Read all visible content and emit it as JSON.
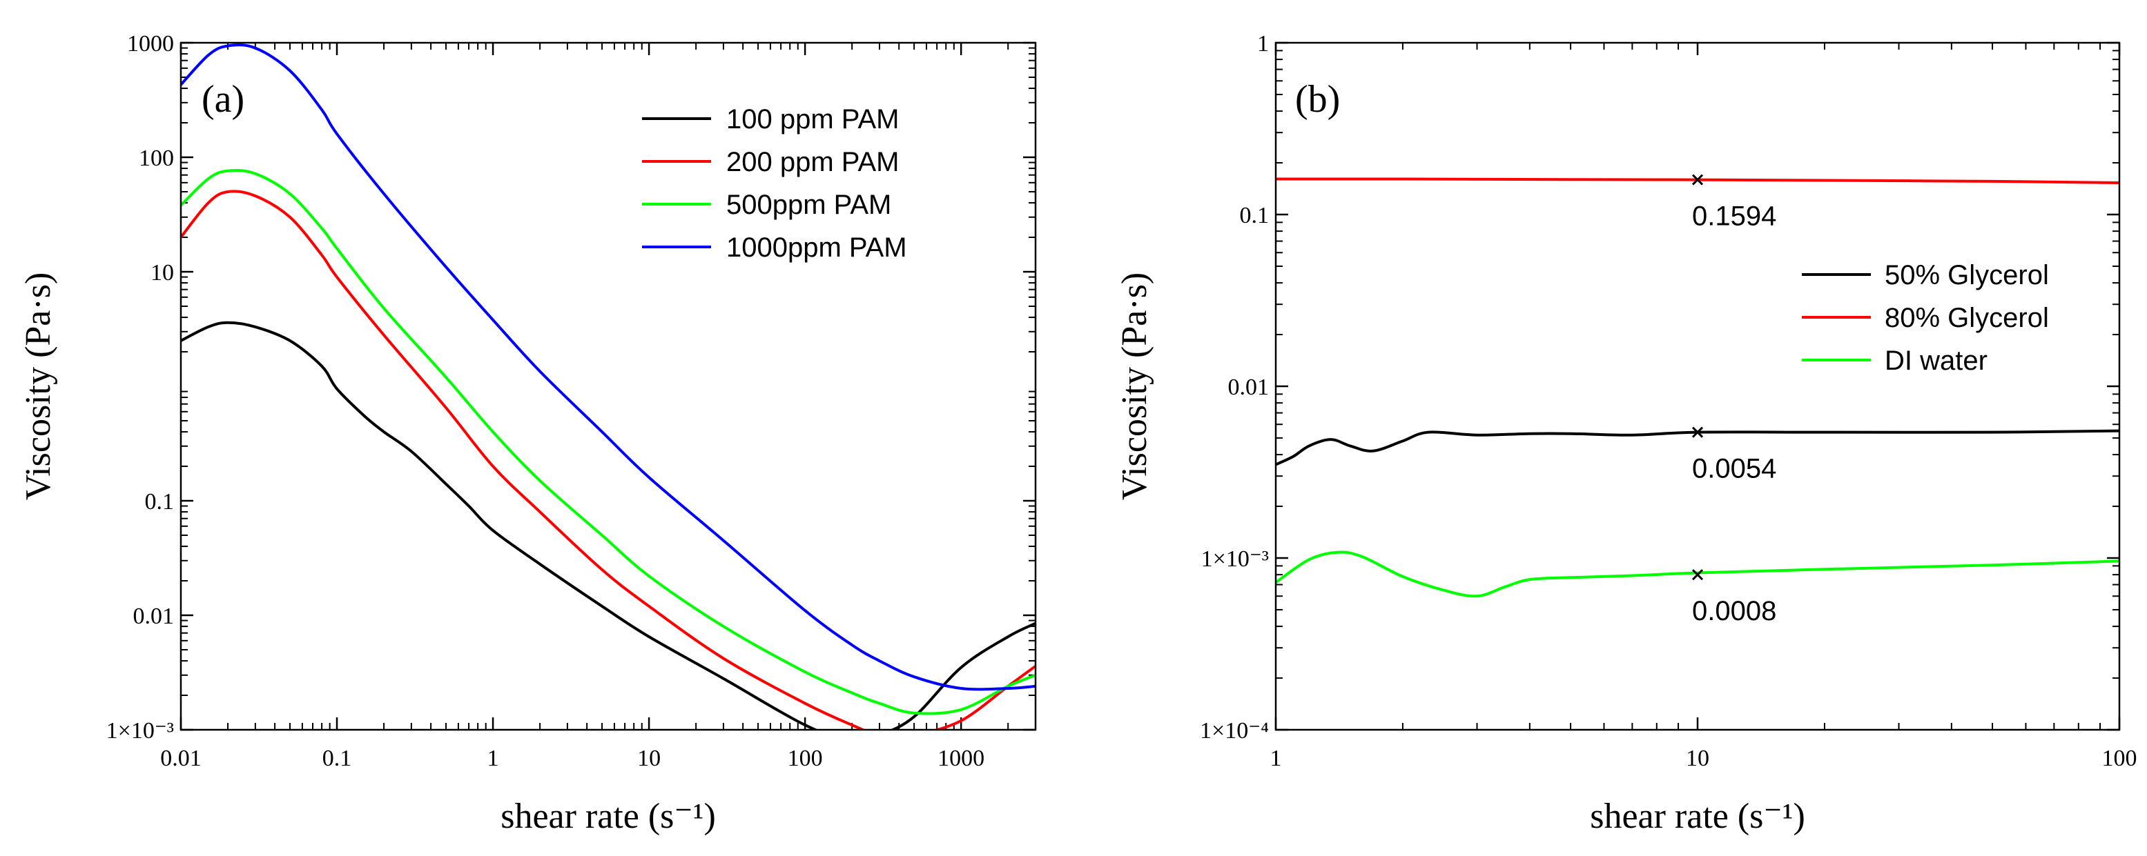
{
  "chart_data": [
    {
      "type": "line",
      "panel_label": "(a)",
      "xlabel": "shear rate (s⁻¹)",
      "ylabel": "Viscosity (Pa·s)",
      "xscale": "log",
      "yscale": "log",
      "xlim": [
        0.01,
        3000
      ],
      "ylim": [
        0.001,
        1000
      ],
      "x_ticks": [
        {
          "value": 0.01,
          "label": "0.01"
        },
        {
          "value": 0.1,
          "label": "0.1"
        },
        {
          "value": 1,
          "label": "1"
        },
        {
          "value": 10,
          "label": "10"
        },
        {
          "value": 100,
          "label": "100"
        },
        {
          "value": 1000,
          "label": "1000"
        }
      ],
      "y_ticks": [
        {
          "value": 0.001,
          "label": "1×10⁻³"
        },
        {
          "value": 0.01,
          "label": "0.01"
        },
        {
          "value": 0.1,
          "label": "0.1"
        },
        {
          "value": 10,
          "label": "10"
        },
        {
          "value": 100,
          "label": "100"
        },
        {
          "value": 1000,
          "label": "1000"
        }
      ],
      "legend_position": "top-right",
      "series": [
        {
          "name": "100 ppm PAM",
          "color": "#000000",
          "x": [
            0.01,
            0.015,
            0.02,
            0.03,
            0.05,
            0.08,
            0.1,
            0.15,
            0.2,
            0.3,
            0.5,
            0.7,
            1,
            2,
            5,
            10,
            30,
            100,
            200,
            300,
            500,
            1000,
            2000,
            3000
          ],
          "y": [
            2.5,
            3.3,
            3.6,
            3.3,
            2.5,
            1.5,
            0.95,
            0.55,
            0.4,
            0.27,
            0.14,
            0.09,
            0.055,
            0.028,
            0.012,
            0.0065,
            0.0028,
            0.0011,
            0.0008,
            0.0009,
            0.0013,
            0.0035,
            0.0065,
            0.0085
          ]
        },
        {
          "name": "200 ppm PAM",
          "color": "#ff0000",
          "x": [
            0.01,
            0.015,
            0.02,
            0.03,
            0.05,
            0.08,
            0.1,
            0.2,
            0.5,
            1,
            2,
            5,
            10,
            30,
            100,
            200,
            300,
            500,
            1000,
            2000,
            3000
          ],
          "y": [
            20,
            40,
            50,
            46,
            30,
            14,
            9,
            2.8,
            0.65,
            0.2,
            0.08,
            0.025,
            0.012,
            0.0042,
            0.0017,
            0.0011,
            0.0009,
            0.0009,
            0.0012,
            0.0024,
            0.0036
          ]
        },
        {
          "name": "500ppm PAM",
          "color": "#00ff00",
          "x": [
            0.01,
            0.015,
            0.02,
            0.03,
            0.05,
            0.08,
            0.1,
            0.2,
            0.5,
            1,
            2,
            5,
            10,
            30,
            100,
            200,
            300,
            500,
            1000,
            2000,
            3000
          ],
          "y": [
            38,
            65,
            76,
            72,
            48,
            24,
            16,
            4.8,
            1.2,
            0.4,
            0.15,
            0.05,
            0.022,
            0.008,
            0.0032,
            0.0021,
            0.0017,
            0.0014,
            0.0015,
            0.0024,
            0.003
          ]
        },
        {
          "name": "1000ppm PAM",
          "color": "#0000ff",
          "x": [
            0.01,
            0.015,
            0.02,
            0.03,
            0.05,
            0.08,
            0.1,
            0.2,
            0.5,
            1,
            2,
            5,
            10,
            30,
            100,
            200,
            300,
            500,
            1000,
            2000,
            3000
          ],
          "y": [
            430,
            780,
            940,
            900,
            570,
            260,
            160,
            48,
            11,
            3.8,
            1.35,
            0.4,
            0.16,
            0.045,
            0.011,
            0.0055,
            0.004,
            0.0029,
            0.0023,
            0.0023,
            0.0024
          ]
        }
      ]
    },
    {
      "type": "line",
      "panel_label": "(b)",
      "xlabel": "shear rate (s⁻¹)",
      "ylabel": "Viscosity (Pa·s)",
      "xscale": "log",
      "yscale": "log",
      "xlim": [
        1,
        100
      ],
      "ylim": [
        0.0001,
        1
      ],
      "x_ticks": [
        {
          "value": 1,
          "label": "1"
        },
        {
          "value": 10,
          "label": "10"
        },
        {
          "value": 100,
          "label": "100"
        }
      ],
      "y_ticks": [
        {
          "value": 0.0001,
          "label": "1×10⁻⁴"
        },
        {
          "value": 0.001,
          "label": "1×10⁻³"
        },
        {
          "value": 0.01,
          "label": "0.01"
        },
        {
          "value": 0.1,
          "label": "0.1"
        },
        {
          "value": 1,
          "label": "1"
        }
      ],
      "legend_position": "center-right",
      "series": [
        {
          "name": "50% Glycerol",
          "color": "#000000",
          "x": [
            1,
            1.1,
            1.2,
            1.35,
            1.5,
            1.7,
            2.0,
            2.3,
            3,
            4,
            5,
            7,
            10,
            20,
            50,
            100
          ],
          "y": [
            0.0035,
            0.0039,
            0.0045,
            0.0049,
            0.0045,
            0.0042,
            0.0048,
            0.0054,
            0.0052,
            0.0053,
            0.0053,
            0.0052,
            0.0054,
            0.0054,
            0.0054,
            0.0055
          ]
        },
        {
          "name": "80% Glycerol",
          "color": "#ff0000",
          "x": [
            1,
            2,
            5,
            10,
            20,
            50,
            100
          ],
          "y": [
            0.161,
            0.161,
            0.16,
            0.1594,
            0.158,
            0.156,
            0.153
          ]
        },
        {
          "name": "DI water",
          "color": "#00ff00",
          "x": [
            1,
            1.2,
            1.4,
            1.6,
            2.0,
            2.5,
            3.0,
            3.5,
            4.0,
            5.0,
            7.0,
            10,
            20,
            50,
            100
          ],
          "y": [
            0.00072,
            0.00098,
            0.00108,
            0.00102,
            0.00078,
            0.00065,
            0.0006,
            0.00068,
            0.00075,
            0.00077,
            0.00079,
            0.00082,
            0.00086,
            0.00091,
            0.00096
          ]
        }
      ],
      "annotations": [
        {
          "x": 10,
          "y": 0.1594,
          "text": "0.1594"
        },
        {
          "x": 10,
          "y": 0.0054,
          "text": "0.0054"
        },
        {
          "x": 10,
          "y": 0.0008,
          "text": "0.0008"
        }
      ]
    }
  ]
}
